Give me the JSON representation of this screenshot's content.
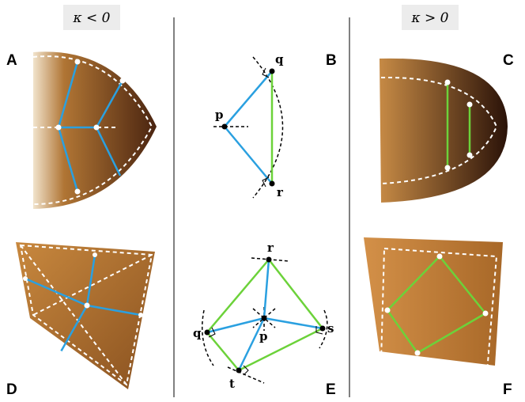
{
  "header": {
    "left": "κ < 0",
    "right": "κ > 0"
  },
  "panels": {
    "A": "A",
    "B": "B",
    "C": "C",
    "D": "D",
    "E": "E",
    "F": "F"
  },
  "diagram_b": {
    "points": [
      "q",
      "p",
      "r"
    ]
  },
  "diagram_e": {
    "points": [
      "r",
      "q",
      "p",
      "s",
      "t"
    ]
  }
}
